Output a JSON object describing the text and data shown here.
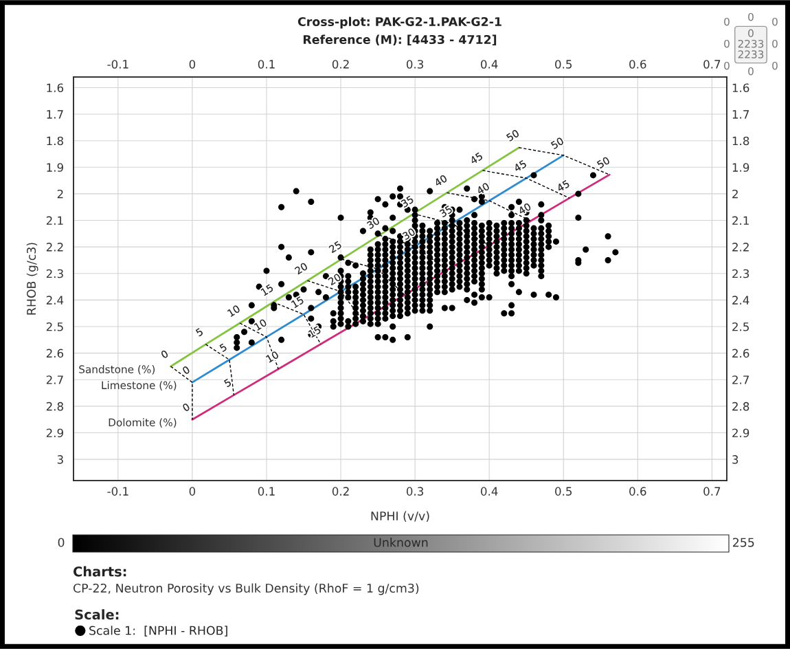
{
  "chart_data": {
    "type": "scatter",
    "title": "Cross-plot: PAK-G2-1.PAK-G2-1",
    "subtitle": "Reference (M): [4433 - 4712]",
    "xlabel": "NPHI (v/v)",
    "ylabel": "RHOB (g/c3)",
    "legend_title": "Scale:",
    "legend": "bottom",
    "clabel": "Unknown",
    "clim": [
      0,
      255
    ],
    "cticks": [
      0,
      255
    ],
    "annotations": [
      "Charts:",
      "CP-22, Neutron Porosity vs Bulk Density (RhoF = 1 g/cm3)",
      "0",
      "0",
      "0",
      "0",
      "0\n2233\n2233",
      "0",
      "0",
      "0",
      "0",
      {
        "text": "0",
        "x": -0.029,
        "y": 2.65
      },
      {
        "text": "5",
        "x": 0.018,
        "y": 2.567
      },
      {
        "text": "10",
        "x": 0.064,
        "y": 2.487
      },
      {
        "text": "15",
        "x": 0.109,
        "y": 2.408
      },
      {
        "text": "20",
        "x": 0.155,
        "y": 2.327
      },
      {
        "text": "25",
        "x": 0.201,
        "y": 2.246
      },
      {
        "text": "30",
        "x": 0.252,
        "y": 2.156
      },
      {
        "text": "35",
        "x": 0.298,
        "y": 2.075
      },
      {
        "text": "40",
        "x": 0.343,
        "y": 1.996
      },
      {
        "text": "45",
        "x": 0.391,
        "y": 1.912
      },
      {
        "text": "50",
        "x": 0.44,
        "y": 1.826
      },
      {
        "text": "0",
        "x": 0,
        "y": 2.71
      },
      {
        "text": "5",
        "x": 0.05,
        "y": 2.625
      },
      {
        "text": "10",
        "x": 0.1,
        "y": 2.539
      },
      {
        "text": "15",
        "x": 0.15,
        "y": 2.454
      },
      {
        "text": "20",
        "x": 0.2,
        "y": 2.368
      },
      {
        "text": "30",
        "x": 0.3,
        "y": 2.197
      },
      {
        "text": "35",
        "x": 0.35,
        "y": 2.112
      },
      {
        "text": "40",
        "x": 0.4,
        "y": 2.026
      },
      {
        "text": "45",
        "x": 0.45,
        "y": 1.941
      },
      {
        "text": "50",
        "x": 0.5,
        "y": 1.855
      },
      {
        "text": "0",
        "x": 0,
        "y": 2.85
      },
      {
        "text": "5",
        "x": 0.056,
        "y": 2.758
      },
      {
        "text": "10",
        "x": 0.116,
        "y": 2.66
      },
      {
        "text": "15",
        "x": 0.173,
        "y": 2.566
      },
      {
        "text": "40",
        "x": 0.456,
        "y": 2.102
      },
      {
        "text": "45",
        "x": 0.508,
        "y": 2.016
      },
      {
        "text": "50",
        "x": 0.562,
        "y": 1.928
      }
    ],
    "xlim": [
      -0.16,
      0.72
    ],
    "xticks": [
      -0.1,
      0,
      0.1,
      0.2,
      0.3,
      0.4,
      0.5,
      0.6,
      0.7
    ],
    "x2lim": [
      -0.16,
      0.72
    ],
    "x2ticks": [
      -0.1,
      0,
      0.1,
      0.2,
      0.3,
      0.4,
      0.5,
      0.6,
      0.7
    ],
    "ylim": [
      3.08,
      1.56
    ],
    "yticks": [
      1.6,
      1.7,
      1.8,
      1.9,
      2,
      2.1,
      2.2,
      2.3,
      2.4,
      2.5,
      2.6,
      2.7,
      2.8,
      2.9,
      3
    ],
    "y2lim": [
      3.08,
      1.56
    ],
    "y2ticks": [
      1.6,
      1.7,
      1.8,
      1.9,
      2,
      2.1,
      2.2,
      2.3,
      2.4,
      2.5,
      2.6,
      2.7,
      2.8,
      2.9,
      3
    ],
    "grid": true,
    "series": [
      {
        "type": "line",
        "name": "Sandstone (%)",
        "color": "#84c441",
        "line_style": "solid",
        "x": [
          -0.029,
          0.018,
          0.064,
          0.109,
          0.155,
          0.201,
          0.252,
          0.298,
          0.343,
          0.391,
          0.44
        ],
        "values": [
          2.65,
          2.567,
          2.487,
          2.408,
          2.327,
          2.246,
          2.156,
          2.075,
          1.996,
          1.912,
          1.826
        ]
      },
      {
        "type": "line",
        "name": "Limestone (%)",
        "color": "#2e8bd0",
        "line_style": "solid",
        "x": [
          0,
          0.05,
          0.1,
          0.15,
          0.2,
          0.25,
          0.3,
          0.35,
          0.4,
          0.45,
          0.5
        ],
        "values": [
          2.71,
          2.625,
          2.539,
          2.454,
          2.368,
          2.283,
          2.197,
          2.112,
          2.026,
          1.941,
          1.855
        ]
      },
      {
        "type": "line",
        "name": "Dolomite (%)",
        "color": "#d02a7c",
        "line_style": "solid",
        "x": [
          0,
          0.056,
          0.116,
          0.173,
          0.229,
          0.286,
          0.343,
          0.4,
          0.456,
          0.508,
          0.562
        ],
        "values": [
          2.85,
          2.758,
          2.66,
          2.566,
          2.474,
          2.381,
          2.287,
          2.194,
          2.102,
          2.016,
          1.928
        ]
      },
      {
        "type": "line",
        "color": "#000000",
        "line_style": "dashed",
        "x": [
          -0.029,
          0,
          0
        ],
        "values": [
          2.65,
          2.71,
          2.85
        ]
      },
      {
        "type": "line",
        "color": "#000000",
        "line_style": "dashed",
        "x": [
          0.018,
          0.05,
          0.056
        ],
        "values": [
          2.567,
          2.625,
          2.758
        ]
      },
      {
        "type": "line",
        "color": "#000000",
        "line_style": "dashed",
        "x": [
          0.064,
          0.1,
          0.116
        ],
        "values": [
          2.487,
          2.539,
          2.66
        ]
      },
      {
        "type": "line",
        "color": "#000000",
        "line_style": "dashed",
        "x": [
          0.109,
          0.15,
          0.173
        ],
        "values": [
          2.408,
          2.454,
          2.566
        ]
      },
      {
        "type": "line",
        "color": "#000000",
        "line_style": "dashed",
        "x": [
          0.155,
          0.2,
          0.229
        ],
        "values": [
          2.327,
          2.368,
          2.474
        ]
      },
      {
        "type": "line",
        "color": "#000000",
        "line_style": "dashed",
        "x": [
          0.201,
          0.25,
          0.286
        ],
        "values": [
          2.246,
          2.283,
          2.381
        ]
      },
      {
        "type": "line",
        "color": "#000000",
        "line_style": "dashed",
        "x": [
          0.252,
          0.3,
          0.343
        ],
        "values": [
          2.156,
          2.197,
          2.287
        ]
      },
      {
        "type": "line",
        "color": "#000000",
        "line_style": "dashed",
        "x": [
          0.298,
          0.35,
          0.4
        ],
        "values": [
          2.075,
          2.112,
          2.194
        ]
      },
      {
        "type": "line",
        "color": "#000000",
        "line_style": "dashed",
        "x": [
          0.343,
          0.4,
          0.456
        ],
        "values": [
          1.996,
          2.026,
          2.102
        ]
      },
      {
        "type": "line",
        "color": "#000000",
        "line_style": "dashed",
        "x": [
          0.391,
          0.45,
          0.508
        ],
        "values": [
          1.912,
          1.941,
          2.016
        ]
      },
      {
        "type": "line",
        "color": "#000000",
        "line_style": "dashed",
        "x": [
          0.44,
          0.5,
          0.562
        ],
        "values": [
          1.826,
          1.855,
          1.928
        ]
      },
      {
        "name": "Scale 1:  [NPHI - RHOB]",
        "color": "#000000",
        "marker": "circle",
        "x": [
          0.06,
          0.06,
          0.06,
          0.07,
          0.08,
          0.08,
          0.08,
          0.09,
          0.1,
          0.11,
          0.11,
          0.12,
          0.12,
          0.12,
          0.12,
          0.13,
          0.13,
          0.14,
          0.14,
          0.15,
          0.16,
          0.16,
          0.16,
          0.16,
          0.16,
          0.17,
          0.17,
          0.18,
          0.18,
          0.19,
          0.19,
          0.19,
          0.2,
          0.2,
          0.2,
          0.2,
          0.2,
          0.2,
          0.2,
          0.2,
          0.2,
          0.2,
          0.2,
          0.2,
          0.2,
          0.21,
          0.21,
          0.21,
          0.21,
          0.21,
          0.21,
          0.21,
          0.21,
          0.22,
          0.22,
          0.22,
          0.22,
          0.22,
          0.22,
          0.22,
          0.22,
          0.22,
          0.23,
          0.23,
          0.23,
          0.23,
          0.23,
          0.23,
          0.23,
          0.23,
          0.23,
          0.23,
          0.23,
          0.24,
          0.24,
          0.24,
          0.24,
          0.24,
          0.24,
          0.24,
          0.24,
          0.24,
          0.24,
          0.24,
          0.24,
          0.24,
          0.24,
          0.24,
          0.24,
          0.24,
          0.25,
          0.25,
          0.25,
          0.25,
          0.25,
          0.25,
          0.25,
          0.25,
          0.25,
          0.25,
          0.25,
          0.25,
          0.25,
          0.25,
          0.25,
          0.25,
          0.25,
          0.25,
          0.25,
          0.26,
          0.26,
          0.26,
          0.26,
          0.26,
          0.26,
          0.26,
          0.26,
          0.26,
          0.26,
          0.26,
          0.26,
          0.26,
          0.26,
          0.26,
          0.26,
          0.26,
          0.26,
          0.26,
          0.27,
          0.27,
          0.27,
          0.27,
          0.27,
          0.27,
          0.27,
          0.27,
          0.27,
          0.27,
          0.27,
          0.27,
          0.27,
          0.27,
          0.27,
          0.27,
          0.27,
          0.27,
          0.27,
          0.27,
          0.28,
          0.28,
          0.28,
          0.28,
          0.28,
          0.28,
          0.28,
          0.28,
          0.28,
          0.28,
          0.28,
          0.28,
          0.28,
          0.28,
          0.28,
          0.28,
          0.28,
          0.28,
          0.28,
          0.29,
          0.29,
          0.29,
          0.29,
          0.29,
          0.29,
          0.29,
          0.29,
          0.29,
          0.29,
          0.29,
          0.29,
          0.29,
          0.29,
          0.29,
          0.29,
          0.29,
          0.3,
          0.3,
          0.3,
          0.3,
          0.3,
          0.3,
          0.3,
          0.3,
          0.3,
          0.3,
          0.3,
          0.3,
          0.3,
          0.3,
          0.3,
          0.3,
          0.3,
          0.3,
          0.3,
          0.3,
          0.31,
          0.31,
          0.31,
          0.31,
          0.31,
          0.31,
          0.31,
          0.31,
          0.31,
          0.31,
          0.31,
          0.31,
          0.31,
          0.31,
          0.31,
          0.31,
          0.31,
          0.32,
          0.32,
          0.32,
          0.32,
          0.32,
          0.32,
          0.32,
          0.32,
          0.32,
          0.32,
          0.32,
          0.32,
          0.32,
          0.32,
          0.32,
          0.32,
          0.32,
          0.32,
          0.33,
          0.33,
          0.33,
          0.33,
          0.33,
          0.33,
          0.33,
          0.33,
          0.33,
          0.33,
          0.33,
          0.33,
          0.33,
          0.33,
          0.34,
          0.34,
          0.34,
          0.34,
          0.34,
          0.34,
          0.34,
          0.34,
          0.34,
          0.34,
          0.34,
          0.34,
          0.34,
          0.34,
          0.34,
          0.34,
          0.35,
          0.35,
          0.35,
          0.35,
          0.35,
          0.35,
          0.35,
          0.35,
          0.35,
          0.35,
          0.35,
          0.35,
          0.35,
          0.35,
          0.35,
          0.35,
          0.35,
          0.36,
          0.36,
          0.36,
          0.36,
          0.36,
          0.36,
          0.36,
          0.36,
          0.36,
          0.36,
          0.36,
          0.36,
          0.36,
          0.36,
          0.37,
          0.37,
          0.37,
          0.37,
          0.37,
          0.37,
          0.37,
          0.37,
          0.37,
          0.37,
          0.37,
          0.37,
          0.37,
          0.37,
          0.37,
          0.37,
          0.38,
          0.38,
          0.38,
          0.38,
          0.38,
          0.38,
          0.38,
          0.38,
          0.38,
          0.38,
          0.38,
          0.38,
          0.38,
          0.38,
          0.38,
          0.38,
          0.39,
          0.39,
          0.39,
          0.39,
          0.39,
          0.39,
          0.39,
          0.39,
          0.39,
          0.39,
          0.39,
          0.39,
          0.39,
          0.39,
          0.39,
          0.39,
          0.4,
          0.4,
          0.4,
          0.4,
          0.4,
          0.4,
          0.4,
          0.4,
          0.4,
          0.4,
          0.41,
          0.41,
          0.41,
          0.41,
          0.41,
          0.41,
          0.41,
          0.41,
          0.41,
          0.41,
          0.42,
          0.42,
          0.42,
          0.42,
          0.42,
          0.42,
          0.42,
          0.42,
          0.42,
          0.42,
          0.42,
          0.43,
          0.43,
          0.43,
          0.43,
          0.43,
          0.43,
          0.43,
          0.43,
          0.43,
          0.43,
          0.43,
          0.43,
          0.43,
          0.43,
          0.43,
          0.43,
          0.44,
          0.44,
          0.44,
          0.44,
          0.44,
          0.44,
          0.44,
          0.44,
          0.44,
          0.44,
          0.44,
          0.44,
          0.45,
          0.45,
          0.45,
          0.45,
          0.45,
          0.45,
          0.45,
          0.45,
          0.45,
          0.45,
          0.45,
          0.45,
          0.46,
          0.46,
          0.46,
          0.46,
          0.46,
          0.46,
          0.46,
          0.46,
          0.46,
          0.46,
          0.47,
          0.47,
          0.47,
          0.47,
          0.47,
          0.47,
          0.47,
          0.47,
          0.47,
          0.47,
          0.47,
          0.47,
          0.47,
          0.48,
          0.48,
          0.48,
          0.48,
          0.48,
          0.48,
          0.49,
          0.49,
          0.52,
          0.52,
          0.52,
          0.52,
          0.53,
          0.54,
          0.56,
          0.56,
          0.57
        ],
        "values": [
          2.54,
          2.56,
          2.58,
          2.52,
          2.42,
          2.48,
          2.56,
          2.35,
          2.29,
          2.42,
          2.43,
          2.05,
          2.2,
          2.34,
          2.55,
          2.24,
          2.39,
          1.99,
          2.38,
          2.36,
          2.03,
          2.22,
          2.43,
          2.47,
          2.53,
          2.37,
          2.5,
          2.31,
          2.39,
          2.45,
          2.48,
          2.5,
          2.09,
          2.24,
          2.29,
          2.31,
          2.33,
          2.35,
          2.37,
          2.39,
          2.41,
          2.43,
          2.45,
          2.47,
          2.49,
          2.26,
          2.31,
          2.33,
          2.35,
          2.37,
          2.39,
          2.48,
          2.5,
          2.27,
          2.35,
          2.37,
          2.39,
          2.41,
          2.43,
          2.45,
          2.47,
          2.49,
          2.14,
          2.3,
          2.32,
          2.34,
          2.36,
          2.38,
          2.4,
          2.42,
          2.44,
          2.46,
          2.48,
          2.07,
          2.09,
          2.21,
          2.23,
          2.25,
          2.27,
          2.29,
          2.31,
          2.33,
          2.35,
          2.37,
          2.39,
          2.41,
          2.43,
          2.45,
          2.47,
          2.49,
          2.02,
          2.15,
          2.19,
          2.21,
          2.23,
          2.25,
          2.27,
          2.29,
          2.31,
          2.33,
          2.35,
          2.37,
          2.39,
          2.41,
          2.43,
          2.45,
          2.47,
          2.49,
          2.54,
          2.04,
          2.13,
          2.17,
          2.19,
          2.21,
          2.23,
          2.25,
          2.27,
          2.29,
          2.31,
          2.33,
          2.35,
          2.37,
          2.39,
          2.41,
          2.43,
          2.45,
          2.47,
          2.54,
          2.01,
          2.09,
          2.14,
          2.18,
          2.2,
          2.22,
          2.24,
          2.26,
          2.28,
          2.3,
          2.32,
          2.34,
          2.36,
          2.38,
          2.4,
          2.42,
          2.44,
          2.46,
          2.5,
          2.55,
          1.98,
          2.01,
          2.04,
          2.16,
          2.18,
          2.2,
          2.22,
          2.24,
          2.26,
          2.28,
          2.3,
          2.32,
          2.34,
          2.36,
          2.38,
          2.4,
          2.42,
          2.44,
          2.46,
          2.06,
          2.17,
          2.19,
          2.21,
          2.23,
          2.25,
          2.27,
          2.29,
          2.31,
          2.33,
          2.35,
          2.37,
          2.39,
          2.41,
          2.43,
          2.45,
          2.54,
          2.06,
          2.08,
          2.1,
          2.12,
          2.14,
          2.16,
          2.18,
          2.2,
          2.22,
          2.24,
          2.26,
          2.28,
          2.3,
          2.32,
          2.34,
          2.36,
          2.38,
          2.4,
          2.42,
          2.44,
          2.12,
          2.14,
          2.16,
          2.18,
          2.2,
          2.22,
          2.24,
          2.26,
          2.28,
          2.3,
          2.32,
          2.34,
          2.36,
          2.38,
          2.4,
          2.42,
          2.44,
          1.99,
          2.14,
          2.16,
          2.18,
          2.2,
          2.22,
          2.24,
          2.26,
          2.28,
          2.3,
          2.32,
          2.34,
          2.36,
          2.38,
          2.4,
          2.42,
          2.44,
          2.5,
          2.11,
          2.13,
          2.15,
          2.17,
          2.19,
          2.21,
          2.23,
          2.25,
          2.27,
          2.29,
          2.31,
          2.33,
          2.35,
          2.37,
          2.05,
          2.11,
          2.13,
          2.15,
          2.17,
          2.19,
          2.21,
          2.23,
          2.25,
          2.27,
          2.29,
          2.31,
          2.33,
          2.35,
          2.37,
          2.43,
          2.06,
          2.08,
          2.1,
          2.12,
          2.14,
          2.16,
          2.18,
          2.2,
          2.22,
          2.24,
          2.26,
          2.28,
          2.3,
          2.32,
          2.34,
          2.36,
          2.43,
          2.06,
          2.11,
          2.13,
          2.15,
          2.17,
          2.19,
          2.21,
          2.23,
          2.25,
          2.27,
          2.29,
          2.31,
          2.33,
          2.35,
          1.98,
          2.1,
          2.12,
          2.14,
          2.16,
          2.18,
          2.2,
          2.22,
          2.24,
          2.26,
          2.28,
          2.3,
          2.32,
          2.34,
          2.36,
          2.4,
          2.02,
          2.08,
          2.11,
          2.13,
          2.15,
          2.17,
          2.19,
          2.21,
          2.23,
          2.25,
          2.27,
          2.29,
          2.31,
          2.33,
          2.38,
          2.41,
          2.01,
          2.03,
          2.12,
          2.14,
          2.16,
          2.18,
          2.2,
          2.22,
          2.24,
          2.26,
          2.28,
          2.3,
          2.32,
          2.34,
          2.36,
          2.39,
          2.11,
          2.13,
          2.15,
          2.17,
          2.19,
          2.21,
          2.23,
          2.25,
          2.27,
          2.39,
          2.12,
          2.14,
          2.16,
          2.18,
          2.2,
          2.22,
          2.24,
          2.26,
          2.28,
          2.3,
          2.11,
          2.13,
          2.15,
          2.17,
          2.19,
          2.21,
          2.23,
          2.25,
          2.27,
          2.29,
          2.45,
          2.05,
          2.08,
          2.11,
          2.13,
          2.15,
          2.17,
          2.19,
          2.21,
          2.23,
          2.25,
          2.27,
          2.29,
          2.31,
          2.34,
          2.42,
          2.45,
          2.03,
          2.11,
          2.13,
          2.15,
          2.17,
          2.19,
          2.21,
          2.23,
          2.25,
          2.27,
          2.29,
          2.37,
          2.07,
          2.1,
          2.12,
          2.14,
          2.16,
          2.18,
          2.2,
          2.22,
          2.24,
          2.26,
          2.28,
          2.3,
          1.93,
          2.13,
          2.15,
          2.17,
          2.19,
          2.21,
          2.23,
          2.25,
          2.27,
          2.38,
          2.04,
          2.08,
          2.1,
          2.13,
          2.15,
          2.17,
          2.19,
          2.21,
          2.23,
          2.25,
          2.27,
          2.29,
          2.31,
          2.12,
          2.14,
          2.16,
          2.18,
          2.2,
          2.38,
          2.18,
          2.39,
          2.0,
          2.09,
          2.25,
          2.26,
          2.21,
          1.93,
          2.16,
          2.25,
          2.22
        ]
      }
    ]
  }
}
